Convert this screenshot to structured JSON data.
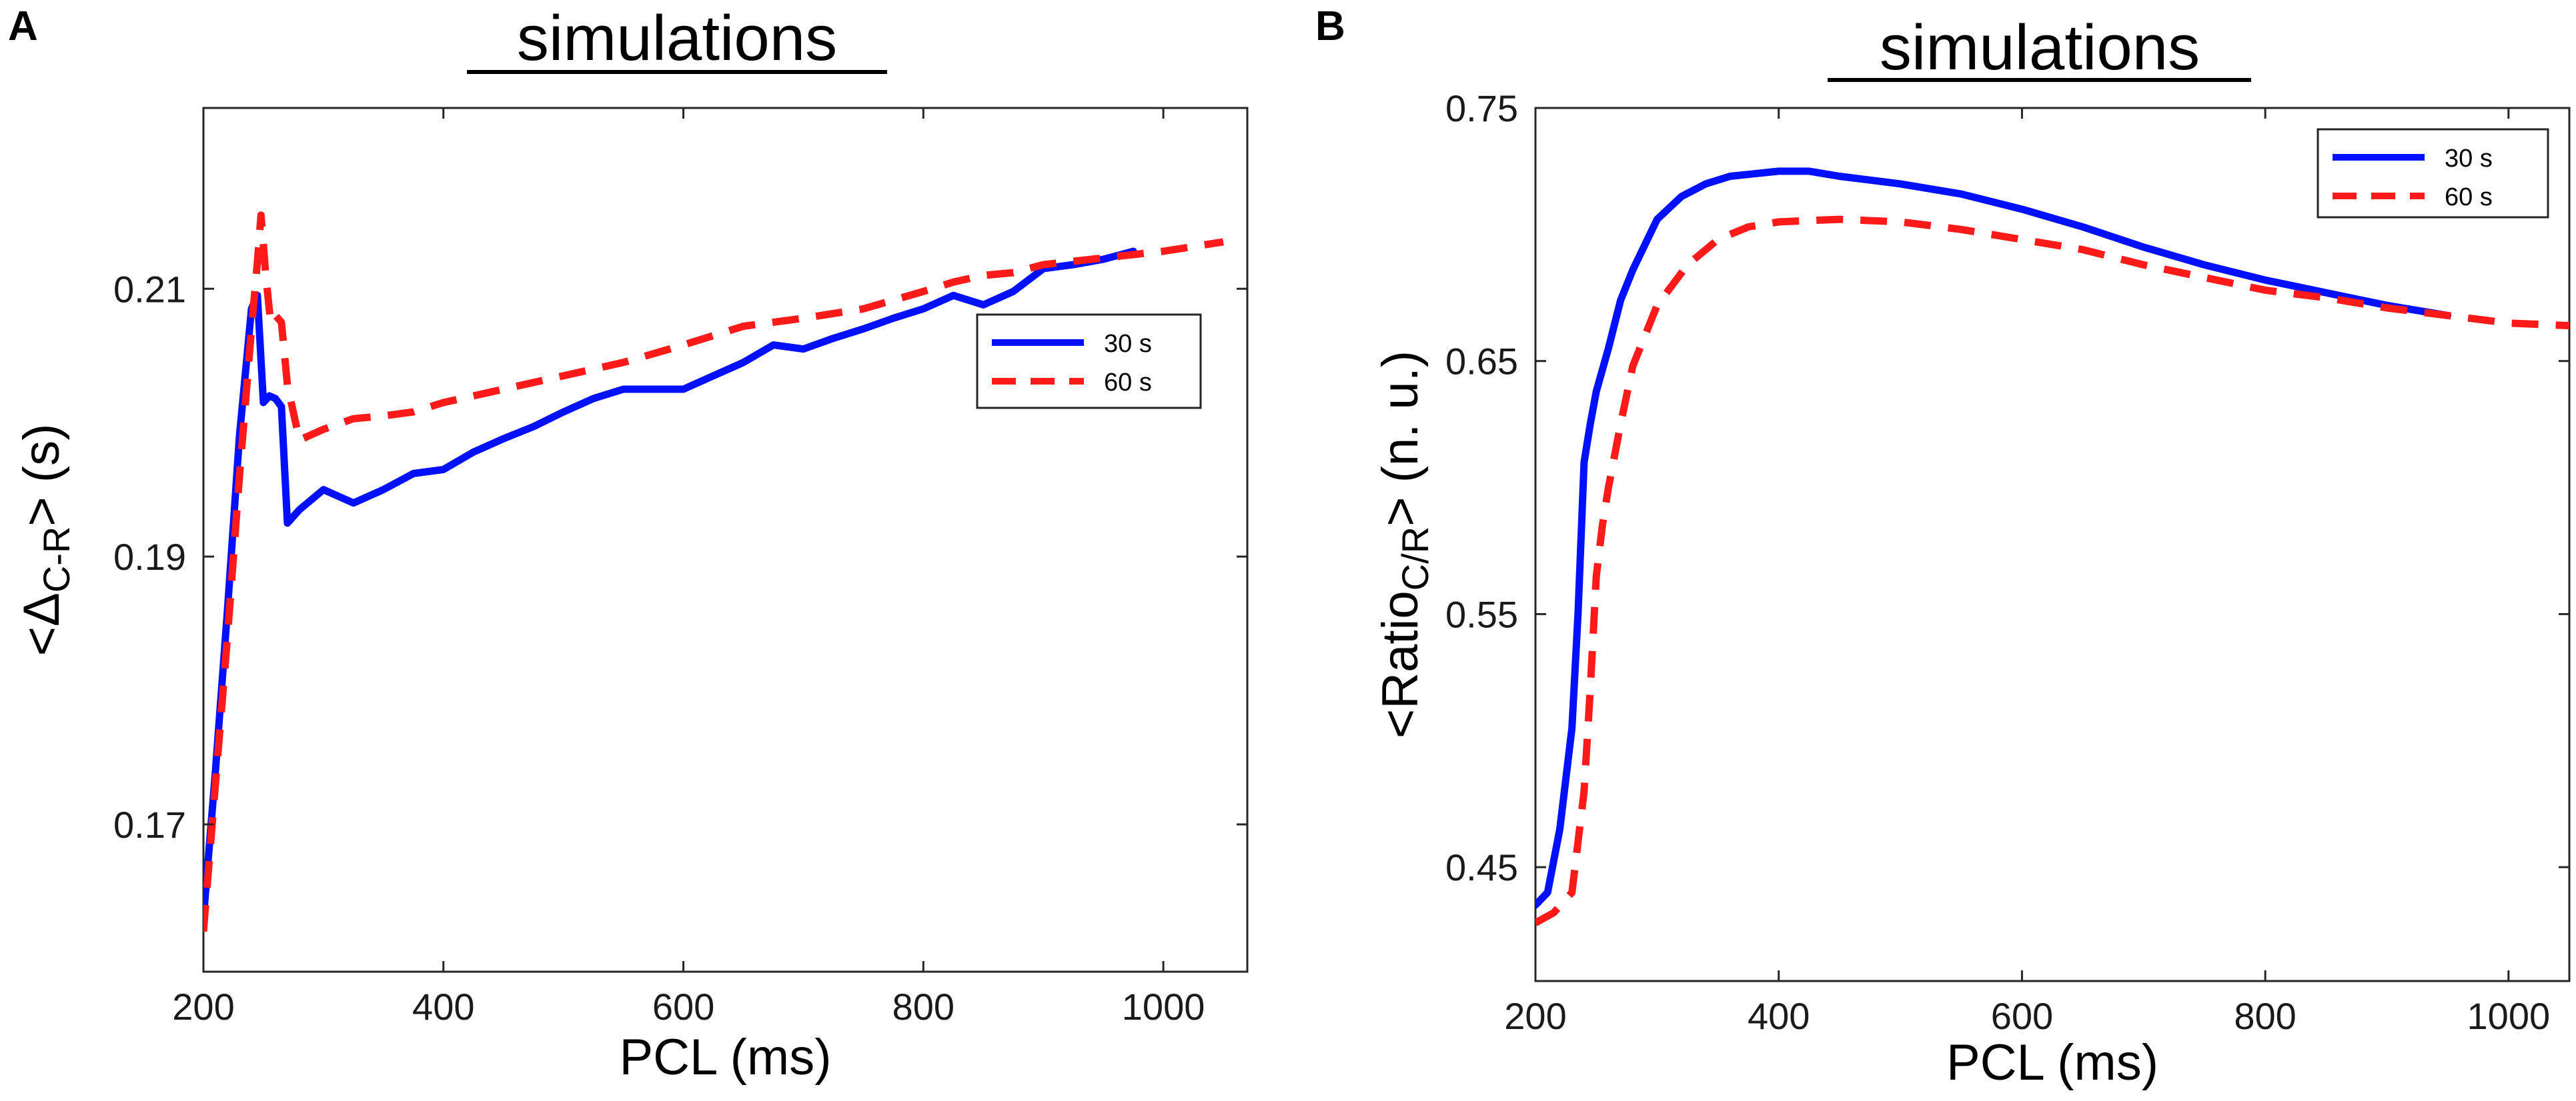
{
  "colors": {
    "series_30s": "#0010ff",
    "series_60s": "#ff1a1a"
  },
  "chart_data": [
    {
      "panel": "A",
      "type": "line",
      "title": "simulations",
      "xlabel": "PCL (ms)",
      "ylabel": "<Δ",
      "ylabel_sub": "C-R",
      "ylabel_tail": "> (s)",
      "xlim": [
        200,
        1070
      ],
      "ylim": [
        0.159,
        0.2235
      ],
      "xticks": [
        200,
        400,
        600,
        800,
        1000
      ],
      "xtick_labels": [
        "200",
        "400",
        "600",
        "800",
        "1000"
      ],
      "yticks": [
        0.17,
        0.19,
        0.21
      ],
      "ytick_labels": [
        "0.17",
        "0.19",
        "0.21"
      ],
      "legend_position": "upper-right",
      "series": [
        {
          "name": "30 s",
          "style": "solid",
          "color": "#0010ff",
          "x": [
            200,
            210,
            220,
            230,
            240,
            245,
            250,
            255,
            260,
            265,
            270,
            280,
            300,
            325,
            350,
            375,
            400,
            425,
            450,
            475,
            500,
            525,
            550,
            575,
            600,
            625,
            650,
            675,
            700,
            725,
            750,
            775,
            800,
            825,
            850,
            875,
            900,
            925,
            950,
            975
          ],
          "y": [
            0.163,
            0.174,
            0.186,
            0.199,
            0.2085,
            0.2095,
            0.2015,
            0.202,
            0.2018,
            0.2012,
            0.1925,
            0.1935,
            0.195,
            0.194,
            0.195,
            0.1962,
            0.1965,
            0.1978,
            0.1988,
            0.1997,
            0.2008,
            0.2018,
            0.2025,
            0.2025,
            0.2025,
            0.2035,
            0.2045,
            0.2058,
            0.2055,
            0.2063,
            0.207,
            0.2078,
            0.2085,
            0.2095,
            0.2088,
            0.2098,
            0.2115,
            0.2118,
            0.2122,
            0.2128
          ]
        },
        {
          "name": "60 s",
          "style": "dashed",
          "color": "#ff1a1a",
          "x": [
            200,
            210,
            220,
            230,
            240,
            245,
            248,
            252,
            256,
            260,
            265,
            270,
            280,
            300,
            325,
            350,
            375,
            400,
            450,
            500,
            550,
            600,
            650,
            700,
            750,
            800,
            825,
            850,
            875,
            900,
            950,
            1000,
            1050
          ],
          "y": [
            0.162,
            0.173,
            0.184,
            0.196,
            0.207,
            0.212,
            0.2155,
            0.211,
            0.2075,
            0.208,
            0.2075,
            0.2028,
            0.1987,
            0.1995,
            0.2003,
            0.2005,
            0.2008,
            0.2015,
            0.2025,
            0.2035,
            0.2045,
            0.2058,
            0.2072,
            0.2078,
            0.2085,
            0.2098,
            0.2105,
            0.211,
            0.2112,
            0.2118,
            0.2123,
            0.2128,
            0.2135
          ]
        }
      ]
    },
    {
      "panel": "B",
      "type": "line",
      "title": "simulations",
      "xlabel": "PCL (ms)",
      "ylabel": "<Ratio",
      "ylabel_sub": "C/R",
      "ylabel_tail": "> (n. u.)",
      "xlim": [
        200,
        1050
      ],
      "ylim": [
        0.405,
        0.75
      ],
      "xticks": [
        200,
        400,
        600,
        800,
        1000
      ],
      "xtick_labels": [
        "200",
        "400",
        "600",
        "800",
        "1000"
      ],
      "yticks": [
        0.45,
        0.55,
        0.65,
        0.75
      ],
      "ytick_labels": [
        "0.45",
        "0.55",
        "0.65",
        "0.75"
      ],
      "legend_position": "upper-right",
      "series": [
        {
          "name": "30 s",
          "style": "solid",
          "color": "#0010ff",
          "x": [
            200,
            210,
            220,
            230,
            235,
            240,
            245,
            250,
            260,
            270,
            280,
            300,
            320,
            340,
            360,
            380,
            400,
            425,
            450,
            500,
            550,
            600,
            650,
            700,
            750,
            800,
            850,
            900,
            950
          ],
          "y": [
            0.435,
            0.44,
            0.465,
            0.505,
            0.55,
            0.61,
            0.625,
            0.638,
            0.655,
            0.674,
            0.686,
            0.706,
            0.715,
            0.72,
            0.723,
            0.724,
            0.725,
            0.725,
            0.723,
            0.72,
            0.716,
            0.71,
            0.703,
            0.695,
            0.688,
            0.682,
            0.677,
            0.672,
            0.668
          ]
        },
        {
          "name": "60 s",
          "style": "dashed",
          "color": "#ff1a1a",
          "x": [
            200,
            215,
            230,
            240,
            245,
            250,
            255,
            260,
            270,
            280,
            300,
            325,
            350,
            375,
            400,
            450,
            500,
            550,
            600,
            650,
            700,
            750,
            800,
            850,
            900,
            950,
            1000,
            1050
          ],
          "y": [
            0.428,
            0.432,
            0.44,
            0.48,
            0.52,
            0.565,
            0.585,
            0.6,
            0.625,
            0.648,
            0.672,
            0.688,
            0.698,
            0.703,
            0.705,
            0.706,
            0.705,
            0.702,
            0.698,
            0.694,
            0.688,
            0.683,
            0.678,
            0.675,
            0.671,
            0.668,
            0.665,
            0.664
          ]
        }
      ]
    }
  ]
}
